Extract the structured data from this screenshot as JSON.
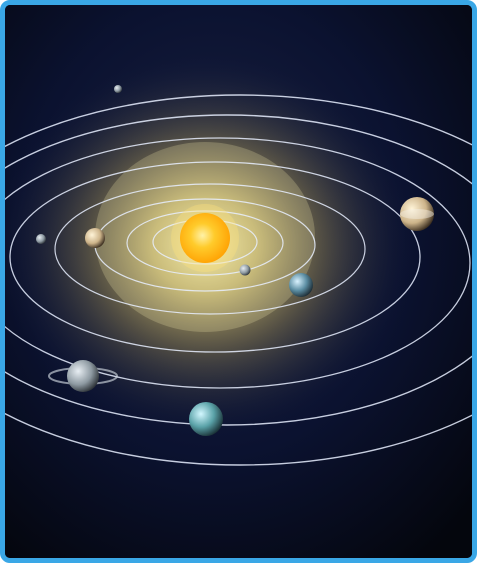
{
  "image": {
    "subject": "",
    "colors": {
      "frame": "#3aa7e6",
      "space": "#0b0f1f",
      "glow": "#f4e48a",
      "sun": "#ffb400",
      "orbit": "#dfe7ff"
    },
    "objects": [
      {
        "name": "sun",
        "type": "star"
      },
      {
        "name": "planet-1",
        "type": "planet"
      },
      {
        "name": "planet-2",
        "type": "planet"
      },
      {
        "name": "planet-3",
        "type": "planet"
      },
      {
        "name": "planet-4",
        "type": "planet"
      },
      {
        "name": "planet-5",
        "type": "planet"
      },
      {
        "name": "planet-6",
        "type": "planet"
      },
      {
        "name": "planet-7",
        "type": "planet"
      },
      {
        "name": "planet-8",
        "type": "planet"
      }
    ]
  }
}
